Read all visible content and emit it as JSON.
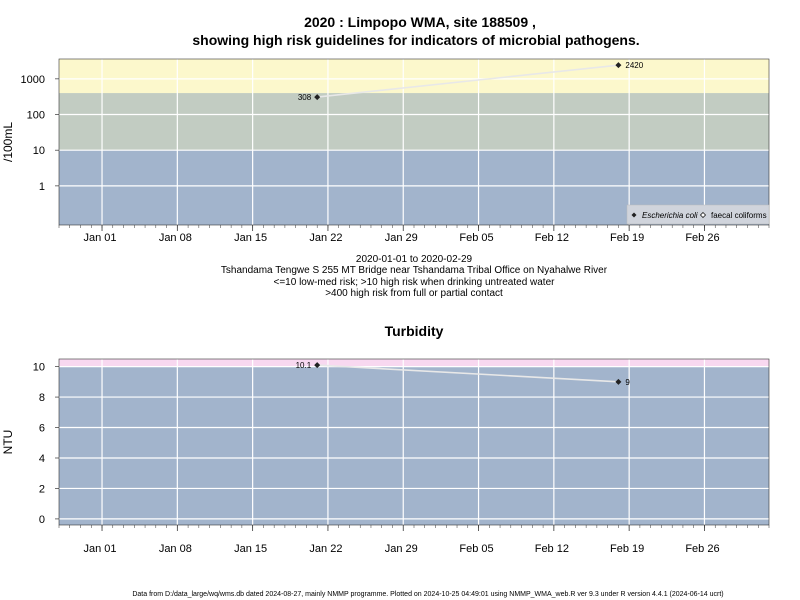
{
  "chart_data": [
    {
      "type": "line",
      "title_line1": "2020 : Limpopo WMA, site 188509 ,",
      "title_line2": "showing high risk guidelines for indicators of microbial pathogens.",
      "ylabel": "/100mL",
      "y_scale": "log",
      "ylim": [
        0.08,
        3600
      ],
      "y_ticks": [
        1,
        10,
        100,
        1000
      ],
      "y_tick_labels": [
        "1",
        "10",
        "100",
        "1000"
      ],
      "x_range": [
        "2019-12-28",
        "2020-03-03"
      ],
      "x_ticks": [
        "2020-01-01",
        "2020-01-08",
        "2020-01-15",
        "2020-01-22",
        "2020-01-29",
        "2020-02-05",
        "2020-02-12",
        "2020-02-19",
        "2020-02-26"
      ],
      "x_tick_labels": [
        "Jan 01",
        "Jan 08",
        "Jan 15",
        "Jan 22",
        "Jan 29",
        "Feb 05",
        "Feb 12",
        "Feb 19",
        "Feb 26"
      ],
      "bands": [
        {
          "from": 0.08,
          "to": 10,
          "color": "#a2b4cc"
        },
        {
          "from": 10,
          "to": 400,
          "color": "#c2ccc2"
        },
        {
          "from": 400,
          "to": 3600,
          "color": "#fcf8cc"
        }
      ],
      "series": [
        {
          "name": "Escherichia coli",
          "marker": "filled-diamond",
          "points": [
            {
              "x": "2020-01-21",
              "y": 308,
              "label": "308"
            },
            {
              "x": "2020-02-18",
              "y": 2420,
              "label": "2420"
            }
          ]
        }
      ],
      "legend_entries": [
        "Escherichia coli",
        "faecal coliforms"
      ],
      "legend_position": "bottom-right",
      "caption_lines": [
        "2020-01-01 to 2020-02-29",
        "Tshandama Tengwe S 255 MT Bridge near Tshandama Tribal Office on Nyahalwe River",
        "<=10 low-med risk; >10 high risk when drinking untreated water",
        ">400 high risk from full or partial contact"
      ],
      "grid": true
    },
    {
      "type": "line",
      "title": "Turbidity",
      "ylabel": "NTU",
      "ylim": [
        -0.4,
        10.5
      ],
      "y_ticks": [
        0,
        2,
        4,
        6,
        8,
        10
      ],
      "y_tick_labels": [
        "0",
        "2",
        "4",
        "6",
        "8",
        "10"
      ],
      "x_range": [
        "2019-12-28",
        "2020-03-03"
      ],
      "x_ticks": [
        "2020-01-01",
        "2020-01-08",
        "2020-01-15",
        "2020-01-22",
        "2020-01-29",
        "2020-02-05",
        "2020-02-12",
        "2020-02-19",
        "2020-02-26"
      ],
      "x_tick_labels": [
        "Jan 01",
        "Jan 08",
        "Jan 15",
        "Jan 22",
        "Jan 29",
        "Feb 05",
        "Feb 12",
        "Feb 19",
        "Feb 26"
      ],
      "bands": [
        {
          "from": -0.4,
          "to": 10,
          "color": "#a2b4cc"
        },
        {
          "from": 10,
          "to": 10.5,
          "color": "#f8d8f0"
        }
      ],
      "series": [
        {
          "name": "",
          "marker": "filled-diamond",
          "points": [
            {
              "x": "2020-01-21",
              "y": 10.1,
              "label": "10.1"
            },
            {
              "x": "2020-02-18",
              "y": 9,
              "label": "9"
            }
          ]
        }
      ],
      "grid": true
    }
  ],
  "footer": "Data from D:/data_large/wq/wms.db dated 2024-08-27, mainly NMMP programme. Plotted on 2024-10-25 04:49:01 using NMMP_WMA_web.R ver 9.3 under R version 4.4.1 (2024-06-14 ucrt)"
}
